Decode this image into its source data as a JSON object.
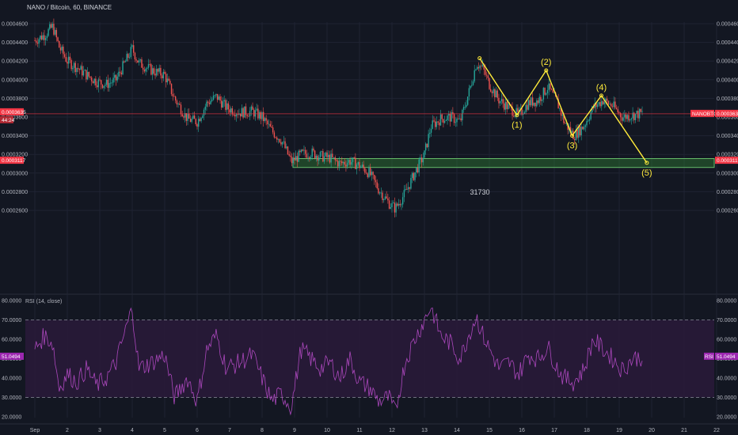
{
  "header": {
    "title": "NANO / Bitcoin, 60, BINANCE"
  },
  "colors": {
    "background": "#131722",
    "grid": "#1f2333",
    "up": "#26a69a",
    "down": "#ef5350",
    "wave": "#ffeb3b",
    "zone_fill": "#2e7d32",
    "zone_border": "#66bb6a",
    "rsi_line": "#ab47bc",
    "rsi_band": "#2a1a3a",
    "price_tag": "#f23645"
  },
  "chart_data": [
    {
      "type": "candlestick",
      "grid": true,
      "ylim": [
        2.5e-05,
        4.6e-05
      ],
      "y_ticks": [
        "0.0004600",
        "0.0004400",
        "0.0004200",
        "0.0004000",
        "0.0003800",
        "0.0003600",
        "0.0003400",
        "0.0003200",
        "0.0003000",
        "0.0002800",
        "0.0002600"
      ],
      "x_ticks": [
        "Sep",
        "2",
        "3",
        "4",
        "5",
        "6",
        "7",
        "8",
        "9",
        "10",
        "11",
        "12",
        "13",
        "14",
        "15",
        "16",
        "17",
        "18",
        "19",
        "20",
        "21",
        "22"
      ],
      "x_range": [
        1.0,
        22.5
      ],
      "price_path": [
        {
          "x": 1.0,
          "y": 4.42e-05
        },
        {
          "x": 1.3,
          "y": 4.48e-05
        },
        {
          "x": 1.55,
          "y": 4.57e-05
        },
        {
          "x": 1.75,
          "y": 4.35e-05
        },
        {
          "x": 2.0,
          "y": 4.2e-05
        },
        {
          "x": 2.3,
          "y": 4.13e-05
        },
        {
          "x": 2.6,
          "y": 4.05e-05
        },
        {
          "x": 2.9,
          "y": 3.98e-05
        },
        {
          "x": 3.2,
          "y": 3.95e-05
        },
        {
          "x": 3.5,
          "y": 4e-05
        },
        {
          "x": 3.8,
          "y": 4.2e-05
        },
        {
          "x": 4.0,
          "y": 4.33e-05
        },
        {
          "x": 4.2,
          "y": 4.18e-05
        },
        {
          "x": 4.6,
          "y": 4.1e-05
        },
        {
          "x": 5.0,
          "y": 4.05e-05
        },
        {
          "x": 5.3,
          "y": 3.8e-05
        },
        {
          "x": 5.7,
          "y": 3.58e-05
        },
        {
          "x": 6.0,
          "y": 3.55e-05
        },
        {
          "x": 6.3,
          "y": 3.75e-05
        },
        {
          "x": 6.6,
          "y": 3.82e-05
        },
        {
          "x": 6.9,
          "y": 3.7e-05
        },
        {
          "x": 7.3,
          "y": 3.65e-05
        },
        {
          "x": 7.7,
          "y": 3.66e-05
        },
        {
          "x": 8.0,
          "y": 3.6e-05
        },
        {
          "x": 8.3,
          "y": 3.45e-05
        },
        {
          "x": 8.6,
          "y": 3.35e-05
        },
        {
          "x": 8.9,
          "y": 3.12e-05
        },
        {
          "x": 9.2,
          "y": 3.2e-05
        },
        {
          "x": 9.5,
          "y": 3.22e-05
        },
        {
          "x": 9.8,
          "y": 3.18e-05
        },
        {
          "x": 10.1,
          "y": 3.16e-05
        },
        {
          "x": 10.4,
          "y": 3.1e-05
        },
        {
          "x": 10.7,
          "y": 3.13e-05
        },
        {
          "x": 11.0,
          "y": 3.08e-05
        },
        {
          "x": 11.3,
          "y": 3e-05
        },
        {
          "x": 11.6,
          "y": 2.82e-05
        },
        {
          "x": 11.9,
          "y": 2.68e-05
        },
        {
          "x": 12.1,
          "y": 2.62e-05
        },
        {
          "x": 12.4,
          "y": 2.78e-05
        },
        {
          "x": 12.7,
          "y": 3e-05
        },
        {
          "x": 13.0,
          "y": 3.2e-05
        },
        {
          "x": 13.2,
          "y": 3.5e-05
        },
        {
          "x": 13.5,
          "y": 3.58e-05
        },
        {
          "x": 13.8,
          "y": 3.6e-05
        },
        {
          "x": 14.1,
          "y": 3.55e-05
        },
        {
          "x": 14.4,
          "y": 3.9e-05
        },
        {
          "x": 14.6,
          "y": 4.18e-05
        },
        {
          "x": 14.8,
          "y": 4.12e-05
        },
        {
          "x": 15.0,
          "y": 3.95e-05
        },
        {
          "x": 15.3,
          "y": 3.78e-05
        },
        {
          "x": 15.6,
          "y": 3.7e-05
        },
        {
          "x": 15.9,
          "y": 3.62e-05
        },
        {
          "x": 16.2,
          "y": 3.75e-05
        },
        {
          "x": 16.5,
          "y": 3.78e-05
        },
        {
          "x": 16.8,
          "y": 3.92e-05
        },
        {
          "x": 17.1,
          "y": 3.75e-05
        },
        {
          "x": 17.3,
          "y": 3.55e-05
        },
        {
          "x": 17.6,
          "y": 3.4e-05
        },
        {
          "x": 17.9,
          "y": 3.5e-05
        },
        {
          "x": 18.2,
          "y": 3.7e-05
        },
        {
          "x": 18.5,
          "y": 3.78e-05
        },
        {
          "x": 18.8,
          "y": 3.72e-05
        },
        {
          "x": 19.1,
          "y": 3.6e-05
        },
        {
          "x": 19.4,
          "y": 3.62e-05
        },
        {
          "x": 19.7,
          "y": 3.64e-05
        }
      ],
      "last_price": 3.635e-05,
      "last_price_label": "0.0003635",
      "countdown": "44:24",
      "symbol_tag": "NANOBTC",
      "zone": {
        "y_top": 3.155e-05,
        "y_bottom": 3.06e-05,
        "x_start": 8.95,
        "x_end": 22.5,
        "label": "0.0003117"
      },
      "zone_text": "31730",
      "wave_points": [
        {
          "x": 14.7,
          "y": 4.23e-05,
          "label": ""
        },
        {
          "x": 15.85,
          "y": 3.62e-05,
          "label": "(1)"
        },
        {
          "x": 16.75,
          "y": 4.1e-05,
          "label": "(2)"
        },
        {
          "x": 17.55,
          "y": 3.4e-05,
          "label": "(3)"
        },
        {
          "x": 18.45,
          "y": 3.83e-05,
          "label": "(4)"
        },
        {
          "x": 19.85,
          "y": 3.11e-05,
          "label": "(5)"
        }
      ]
    },
    {
      "type": "line",
      "title": "RSI (14, close)",
      "ylim": [
        18,
        82
      ],
      "y_ticks": [
        "80.0000",
        "70.0000",
        "60.0000",
        "50.0000",
        "40.0000",
        "30.0000",
        "20.0000"
      ],
      "upper_band": 70,
      "lower_band": 30,
      "last_value": "51.0494",
      "tag_label": "RSI",
      "series": [
        {
          "values": [
            {
              "x": 1.0,
              "y": 55
            },
            {
              "x": 1.3,
              "y": 62
            },
            {
              "x": 1.55,
              "y": 58
            },
            {
              "x": 1.75,
              "y": 35
            },
            {
              "x": 2.0,
              "y": 42
            },
            {
              "x": 2.3,
              "y": 38
            },
            {
              "x": 2.6,
              "y": 45
            },
            {
              "x": 2.9,
              "y": 36
            },
            {
              "x": 3.2,
              "y": 40
            },
            {
              "x": 3.5,
              "y": 48
            },
            {
              "x": 3.8,
              "y": 65
            },
            {
              "x": 4.0,
              "y": 76
            },
            {
              "x": 4.2,
              "y": 45
            },
            {
              "x": 4.6,
              "y": 48
            },
            {
              "x": 5.0,
              "y": 52
            },
            {
              "x": 5.3,
              "y": 30
            },
            {
              "x": 5.7,
              "y": 40
            },
            {
              "x": 6.0,
              "y": 28
            },
            {
              "x": 6.3,
              "y": 55
            },
            {
              "x": 6.6,
              "y": 62
            },
            {
              "x": 6.9,
              "y": 45
            },
            {
              "x": 7.3,
              "y": 48
            },
            {
              "x": 7.7,
              "y": 52
            },
            {
              "x": 8.0,
              "y": 40
            },
            {
              "x": 8.3,
              "y": 28
            },
            {
              "x": 8.6,
              "y": 32
            },
            {
              "x": 8.9,
              "y": 25
            },
            {
              "x": 9.2,
              "y": 55
            },
            {
              "x": 9.5,
              "y": 50
            },
            {
              "x": 9.8,
              "y": 45
            },
            {
              "x": 10.1,
              "y": 48
            },
            {
              "x": 10.4,
              "y": 40
            },
            {
              "x": 10.7,
              "y": 50
            },
            {
              "x": 11.0,
              "y": 38
            },
            {
              "x": 11.3,
              "y": 35
            },
            {
              "x": 11.6,
              "y": 28
            },
            {
              "x": 11.9,
              "y": 30
            },
            {
              "x": 12.1,
              "y": 22
            },
            {
              "x": 12.4,
              "y": 48
            },
            {
              "x": 12.7,
              "y": 60
            },
            {
              "x": 13.0,
              "y": 70
            },
            {
              "x": 13.2,
              "y": 77
            },
            {
              "x": 13.5,
              "y": 62
            },
            {
              "x": 13.8,
              "y": 58
            },
            {
              "x": 14.1,
              "y": 50
            },
            {
              "x": 14.4,
              "y": 64
            },
            {
              "x": 14.6,
              "y": 72
            },
            {
              "x": 14.8,
              "y": 62
            },
            {
              "x": 15.0,
              "y": 55
            },
            {
              "x": 15.3,
              "y": 45
            },
            {
              "x": 15.6,
              "y": 48
            },
            {
              "x": 15.9,
              "y": 42
            },
            {
              "x": 16.2,
              "y": 52
            },
            {
              "x": 16.5,
              "y": 50
            },
            {
              "x": 16.8,
              "y": 56
            },
            {
              "x": 17.1,
              "y": 45
            },
            {
              "x": 17.3,
              "y": 40
            },
            {
              "x": 17.6,
              "y": 38
            },
            {
              "x": 17.9,
              "y": 44
            },
            {
              "x": 18.2,
              "y": 60
            },
            {
              "x": 18.5,
              "y": 55
            },
            {
              "x": 18.8,
              "y": 50
            },
            {
              "x": 19.1,
              "y": 44
            },
            {
              "x": 19.4,
              "y": 50
            },
            {
              "x": 19.7,
              "y": 51
            }
          ]
        }
      ]
    }
  ]
}
